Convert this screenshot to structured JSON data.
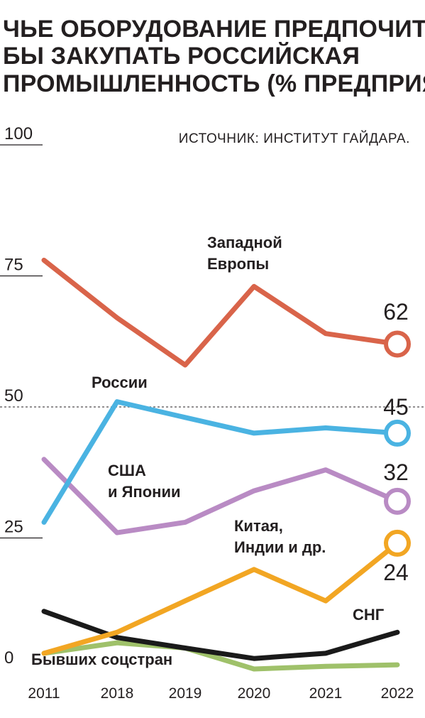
{
  "title_lines": [
    "ЧЬЕ ОБОРУДОВАНИЕ ПРЕДПОЧИТАЛА",
    "БЫ ЗАКУПАТЬ РОССИЙСКАЯ",
    "ПРОМЫШЛЕННОСТЬ (% ПРЕДПРИЯТИЙ)"
  ],
  "source": "ИСТОЧНИК: ИНСТИТУТ ГАЙДАРА.",
  "chart_data": {
    "type": "line",
    "title": "ЧЬЕ ОБОРУДОВАНИЕ ПРЕДПОЧИТАЛА БЫ ЗАКУПАТЬ РОССИЙСКАЯ ПРОМЫШЛЕННОСТЬ (% ПРЕДПРИЯТИЙ)",
    "x": [
      "2011",
      "2018",
      "2019",
      "2020",
      "2021",
      "2022"
    ],
    "y_ticks": [
      0,
      25,
      50,
      75,
      100
    ],
    "ylim": [
      0,
      100
    ],
    "reference_line": 50,
    "series": [
      {
        "name": "Западной Европы",
        "label_lines": [
          "Западной",
          "Европы"
        ],
        "color": "#d9644a",
        "values": [
          78,
          67,
          58,
          73,
          64,
          62
        ],
        "end_label": "62"
      },
      {
        "name": "России",
        "label_lines": [
          "России"
        ],
        "color": "#4ab3e2",
        "values": [
          28,
          51,
          48,
          45,
          46,
          45
        ],
        "end_label": "45"
      },
      {
        "name": "США и Японии",
        "label_lines": [
          "США",
          "и Японии"
        ],
        "color": "#b98bc4",
        "values": [
          40,
          26,
          28,
          34,
          38,
          32
        ],
        "end_label": "32"
      },
      {
        "name": "Китая, Индии и др.",
        "label_lines": [
          "Китая,",
          "Индии и др."
        ],
        "color": "#f2a623",
        "values": [
          3,
          7,
          13,
          19,
          13,
          24
        ],
        "end_label": "24"
      },
      {
        "name": "СНГ",
        "label_lines": [
          "СНГ"
        ],
        "color": "#1a1a1a",
        "values": [
          11,
          6,
          4,
          2,
          3,
          7
        ]
      },
      {
        "name": "Бывших соцстран",
        "label_lines": [
          "Бывших соцстран"
        ],
        "color": "#9fc16a",
        "values": [
          3,
          5,
          4,
          0,
          0.5,
          0.8
        ]
      }
    ]
  }
}
